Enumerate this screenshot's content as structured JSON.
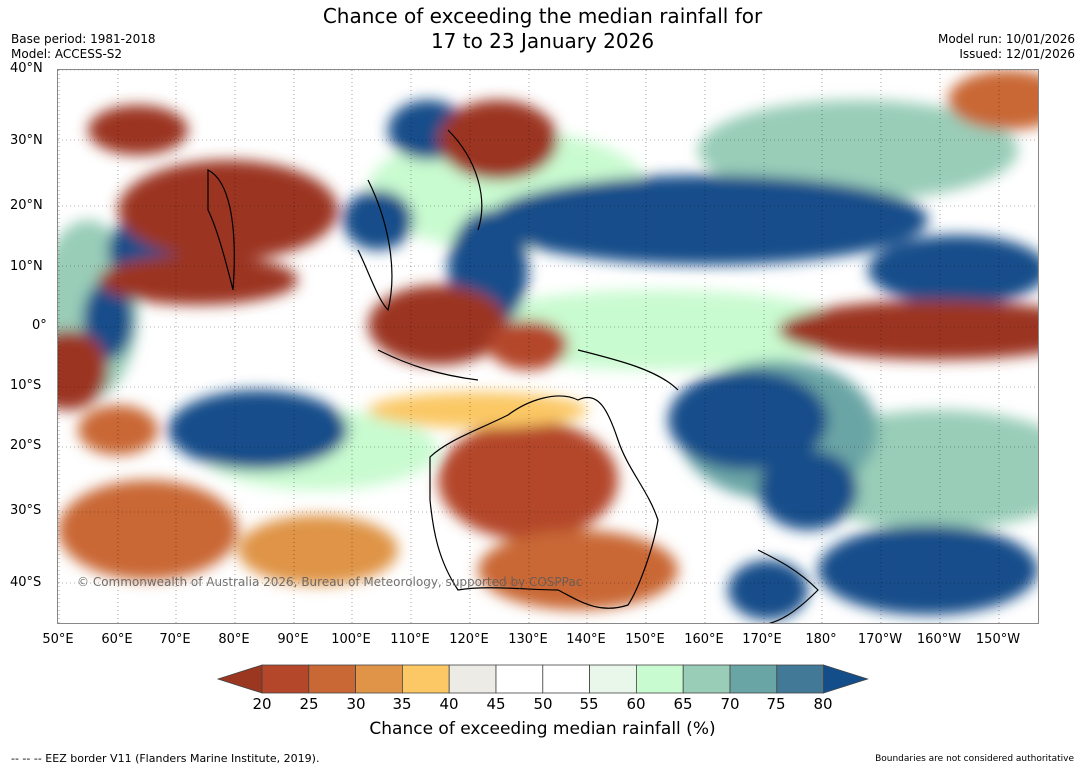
{
  "header": {
    "title_line1": "Chance of exceeding the median rainfall for",
    "title_line2": "17 to 23 January 2026",
    "base_period": "Base period: 1981-2018",
    "model": "Model: ACCESS-S2",
    "model_run": "Model run: 10/01/2026",
    "issued": "Issued: 12/01/2026"
  },
  "map": {
    "lat_labels": [
      "40°N",
      "30°N",
      "20°N",
      "10°N",
      "0°",
      "10°S",
      "20°S",
      "30°S",
      "40°S"
    ],
    "lon_labels": [
      "50°E",
      "60°E",
      "70°E",
      "80°E",
      "90°E",
      "100°E",
      "110°E",
      "120°E",
      "130°E",
      "140°E",
      "150°E",
      "160°E",
      "170°E",
      "180°",
      "170°W",
      "160°W",
      "150°W"
    ],
    "copyright": "© Commonwealth of Australia 2026, Bureau of Meteorology, supported by COSPPac"
  },
  "colorbar": {
    "ticks": [
      "20",
      "25",
      "30",
      "35",
      "40",
      "45",
      "50",
      "55",
      "60",
      "65",
      "70",
      "75",
      "80"
    ],
    "colors": [
      "#9b3620",
      "#b4472a",
      "#c96735",
      "#df9447",
      "#fbc865",
      "#ecebe6",
      "#ffffff",
      "#ffffff",
      "#e9f6ea",
      "#c9fbd0",
      "#99cdb8",
      "#6aa5a5",
      "#417997",
      "#134e8a"
    ],
    "label": "Chance of exceeding median rainfall (%)"
  },
  "footer": {
    "eez_note": "--  --  -- EEZ border V11 (Flanders Marine Institute, 2019).",
    "boundaries_note": "Boundaries are not considered authoritative"
  }
}
